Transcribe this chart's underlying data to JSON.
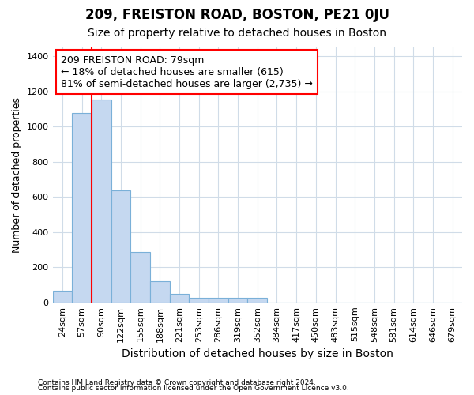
{
  "title": "209, FREISTON ROAD, BOSTON, PE21 0JU",
  "subtitle": "Size of property relative to detached houses in Boston",
  "xlabel": "Distribution of detached houses by size in Boston",
  "ylabel": "Number of detached properties",
  "categories": [
    "24sqm",
    "57sqm",
    "90sqm",
    "122sqm",
    "155sqm",
    "188sqm",
    "221sqm",
    "253sqm",
    "286sqm",
    "319sqm",
    "352sqm",
    "384sqm",
    "417sqm",
    "450sqm",
    "483sqm",
    "515sqm",
    "548sqm",
    "581sqm",
    "614sqm",
    "646sqm",
    "679sqm"
  ],
  "values": [
    65,
    1075,
    1155,
    635,
    285,
    120,
    48,
    25,
    25,
    25,
    25,
    0,
    0,
    0,
    0,
    0,
    0,
    0,
    0,
    0,
    0
  ],
  "bar_color": "#c5d8f0",
  "bar_edge_color": "#7ab0d8",
  "vline_color": "red",
  "vline_pos": 1.5,
  "annotation_text": "209 FREISTON ROAD: 79sqm\n← 18% of detached houses are smaller (615)\n81% of semi-detached houses are larger (2,735) →",
  "annotation_box_color": "white",
  "annotation_box_edge_color": "red",
  "ylim": [
    0,
    1450
  ],
  "yticks": [
    0,
    200,
    400,
    600,
    800,
    1000,
    1200,
    1400
  ],
  "bg_color": "#ffffff",
  "plot_bg_color": "#ffffff",
  "grid_color": "#d0dce8",
  "title_fontsize": 12,
  "subtitle_fontsize": 10,
  "tick_fontsize": 8,
  "ylabel_fontsize": 9,
  "xlabel_fontsize": 10,
  "footer1": "Contains HM Land Registry data © Crown copyright and database right 2024.",
  "footer2": "Contains public sector information licensed under the Open Government Licence v3.0."
}
